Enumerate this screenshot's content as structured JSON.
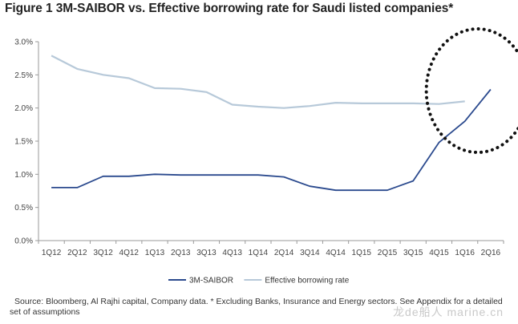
{
  "figure": {
    "title": "Figure 1  3M-SAIBOR vs. Effective borrowing rate for Saudi listed companies*",
    "source": "Source: Bloomberg, Al Rajhi capital, Company data. * Excluding Banks, Insurance and Energy sectors. See Appendix for a detailed set of assumptions",
    "watermark": "龙de船人 marine.cn"
  },
  "chart_data": {
    "type": "line",
    "title": "3M-SAIBOR vs. Effective borrowing rate for Saudi listed companies*",
    "xlabel": "",
    "ylabel": "",
    "categories": [
      "1Q12",
      "2Q12",
      "3Q12",
      "4Q12",
      "1Q13",
      "2Q13",
      "3Q13",
      "4Q13",
      "1Q14",
      "2Q14",
      "3Q14",
      "4Q14",
      "1Q15",
      "2Q15",
      "3Q15",
      "4Q15",
      "1Q16",
      "2Q16"
    ],
    "y_ticks": [
      "0.0%",
      "0.5%",
      "1.0%",
      "1.5%",
      "2.0%",
      "2.5%",
      "3.0%"
    ],
    "ylim": [
      0,
      3.0
    ],
    "grid": false,
    "legend_position": "bottom",
    "series": [
      {
        "name": "3M-SAIBOR",
        "color": "#2b4a8e",
        "values": [
          0.8,
          0.8,
          0.97,
          0.97,
          1.0,
          0.99,
          0.99,
          0.99,
          0.99,
          0.96,
          0.82,
          0.76,
          0.76,
          0.76,
          0.9,
          1.48,
          1.8,
          2.28
        ]
      },
      {
        "name": "Effective borrowing rate",
        "color": "#b7c9d9",
        "values": [
          2.79,
          2.59,
          2.5,
          2.45,
          2.3,
          2.29,
          2.24,
          2.05,
          2.02,
          2.0,
          2.03,
          2.08,
          2.07,
          2.07,
          2.07,
          2.06,
          2.1,
          null
        ]
      }
    ],
    "annotations": [
      {
        "type": "dotted-ellipse",
        "around_categories": [
          "4Q15",
          "1Q16",
          "2Q16"
        ]
      }
    ]
  }
}
